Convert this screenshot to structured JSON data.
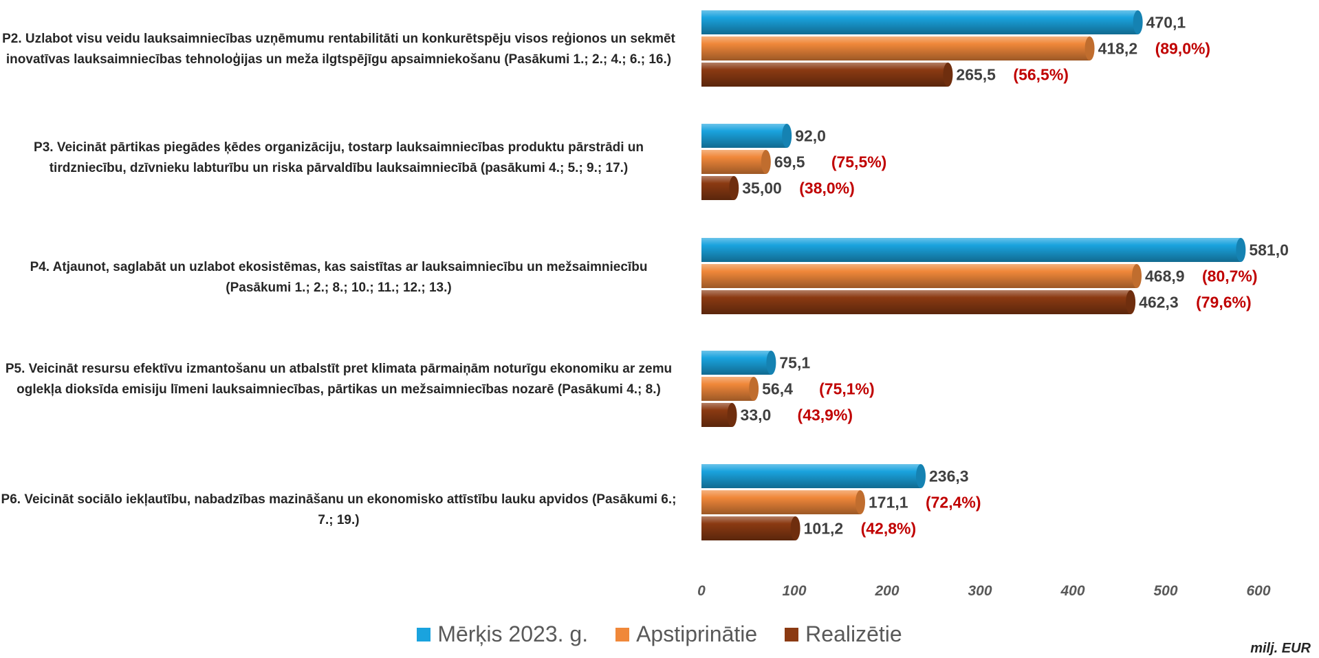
{
  "chart_data": {
    "type": "bar",
    "orientation": "horizontal",
    "categories": [
      "P2. Uzlabot visu veidu lauksaimniecības uzņēmumu rentabilitāti un konkurētspēju visos reģionos un sekmēt inovatīvas lauksaimniecības tehnoloģijas un meža ilgtspējīgu apsaimniekošanu (Pasākumi 1.; 2.; 4.; 6.; 16.)",
      "P3. Veicināt pārtikas piegādes ķēdes organizāciju, tostarp lauksaimniecības produktu pārstrādi un tirdzniecību, dzīvnieku labturību un riska pārvaldību lauksaimniecībā (pasākumi 4.; 5.; 9.; 17.)",
      "P4. Atjaunot, saglabāt un uzlabot ekosistēmas, kas saistītas ar lauksaimniecību un mežsaimniecību (Pasākumi 1.; 2.; 8.; 10.; 11.; 12.; 13.)",
      "P5. Veicināt resursu efektīvu izmantošanu un atbalstīt pret klimata pārmaiņām noturīgu ekonomiku ar zemu oglekļa dioksīda emisiju līmeni lauksaimniecības, pārtikas un mežsaimniecības nozarē (Pasākumi 4.; 8.)",
      "P6. Veicināt sociālo iekļautību, nabadzības mazināšanu un ekonomisko attīstību lauku apvidos (Pasākumi 6.; 7.; 19.)"
    ],
    "series": [
      {
        "name": "Mērķis 2023. g.",
        "color": "#1aa3de",
        "values": [
          470.1,
          92.0,
          581.0,
          75.1,
          236.3
        ],
        "labels": [
          "470,1",
          "92,0",
          "581,0",
          "75,1",
          "236,3"
        ],
        "pct_labels": [
          "",
          "",
          "",
          "",
          ""
        ]
      },
      {
        "name": "Apstiprinātie",
        "color": "#f0883a",
        "values": [
          418.2,
          69.5,
          468.9,
          56.4,
          171.1
        ],
        "labels": [
          "418,2",
          "69,5",
          "468,9",
          "56,4",
          "171,1"
        ],
        "pct_labels": [
          "(89,0%)",
          "(75,5%)",
          "(80,7%)",
          "(75,1%)",
          "(72,4%)"
        ]
      },
      {
        "name": "Realizētie",
        "color": "#8b3a12",
        "values": [
          265.5,
          35.0,
          462.3,
          33.0,
          101.2
        ],
        "labels": [
          "265,5",
          "35,00",
          "462,3",
          "33,0",
          "101,2"
        ],
        "pct_labels": [
          "(56,5%)",
          "(38,0%)",
          "(79,6%)",
          "(43,9%)",
          "(42,8%)"
        ]
      }
    ],
    "xlim": [
      0,
      600
    ],
    "xticks": [
      "0",
      "100",
      "200",
      "300",
      "400",
      "500",
      "600"
    ],
    "grid": false,
    "legend_position": "bottom",
    "unit_label": "milj. EUR"
  }
}
